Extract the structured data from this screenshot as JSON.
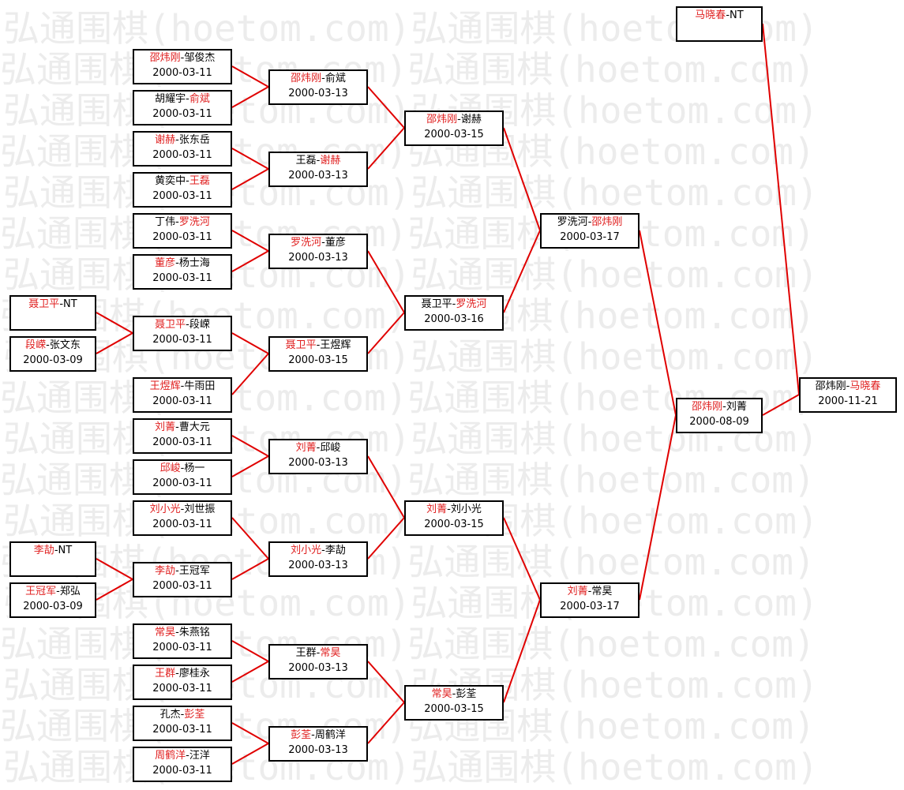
{
  "watermark": "弘通围棋(hoetom.com)弘通围棋(hoetom.com)",
  "colors": {
    "winner": "#e02020",
    "line": "#e00000",
    "border": "#000000",
    "watermark": "#ececec"
  },
  "matches": [
    {
      "a": "马晓春",
      "b": "NT",
      "winner": "a",
      "date": ""
    },
    {
      "a": "邵炜刚",
      "b": "马晓春",
      "winner": "b",
      "date": "2000-11-21"
    },
    {
      "a": "邵炜刚",
      "b": "刘菁",
      "winner": "a",
      "date": "2000-08-09"
    },
    {
      "a": "罗洗河",
      "b": "邵炜刚",
      "winner": "b",
      "date": "2000-03-17"
    },
    {
      "a": "刘菁",
      "b": "常昊",
      "winner": "a",
      "date": "2000-03-17"
    },
    {
      "a": "邵炜刚",
      "b": "谢赫",
      "winner": "a",
      "date": "2000-03-15"
    },
    {
      "a": "聂卫平",
      "b": "罗洗河",
      "winner": "b",
      "date": "2000-03-16"
    },
    {
      "a": "刘菁",
      "b": "刘小光",
      "winner": "a",
      "date": "2000-03-15"
    },
    {
      "a": "常昊",
      "b": "彭荃",
      "winner": "a",
      "date": "2000-03-15"
    },
    {
      "a": "邵炜刚",
      "b": "俞斌",
      "winner": "a",
      "date": "2000-03-13"
    },
    {
      "a": "王磊",
      "b": "谢赫",
      "winner": "b",
      "date": "2000-03-13"
    },
    {
      "a": "罗洗河",
      "b": "董彦",
      "winner": "a",
      "date": "2000-03-13"
    },
    {
      "a": "聂卫平",
      "b": "王煜辉",
      "winner": "a",
      "date": "2000-03-15"
    },
    {
      "a": "刘菁",
      "b": "邱峻",
      "winner": "a",
      "date": "2000-03-13"
    },
    {
      "a": "刘小光",
      "b": "李劼",
      "winner": "a",
      "date": "2000-03-13"
    },
    {
      "a": "王群",
      "b": "常昊",
      "winner": "b",
      "date": "2000-03-13"
    },
    {
      "a": "彭荃",
      "b": "周鹤洋",
      "winner": "a",
      "date": "2000-03-13"
    },
    {
      "a": "邵炜刚",
      "b": "邹俊杰",
      "winner": "a",
      "date": "2000-03-11"
    },
    {
      "a": "胡耀宇",
      "b": "俞斌",
      "winner": "b",
      "date": "2000-03-11"
    },
    {
      "a": "谢赫",
      "b": "张东岳",
      "winner": "a",
      "date": "2000-03-11"
    },
    {
      "a": "黄奕中",
      "b": "王磊",
      "winner": "b",
      "date": "2000-03-11"
    },
    {
      "a": "丁伟",
      "b": "罗洗河",
      "winner": "b",
      "date": "2000-03-11"
    },
    {
      "a": "董彦",
      "b": "杨士海",
      "winner": "a",
      "date": "2000-03-11"
    },
    {
      "a": "聂卫平",
      "b": "段嵘",
      "winner": "a",
      "date": "2000-03-11"
    },
    {
      "a": "王煜辉",
      "b": "牛雨田",
      "winner": "a",
      "date": "2000-03-11"
    },
    {
      "a": "刘菁",
      "b": "曹大元",
      "winner": "a",
      "date": "2000-03-11"
    },
    {
      "a": "邱峻",
      "b": "杨一",
      "winner": "a",
      "date": "2000-03-11"
    },
    {
      "a": "刘小光",
      "b": "刘世振",
      "winner": "a",
      "date": "2000-03-11"
    },
    {
      "a": "李劼",
      "b": "王冠军",
      "winner": "a",
      "date": "2000-03-11"
    },
    {
      "a": "常昊",
      "b": "朱燕铭",
      "winner": "a",
      "date": "2000-03-11"
    },
    {
      "a": "王群",
      "b": "廖桂永",
      "winner": "a",
      "date": "2000-03-11"
    },
    {
      "a": "孔杰",
      "b": "彭荃",
      "winner": "b",
      "date": "2000-03-11"
    },
    {
      "a": "周鹤洋",
      "b": "汪洋",
      "winner": "a",
      "date": "2000-03-11"
    },
    {
      "a": "聂卫平",
      "b": "NT",
      "winner": "a",
      "date": ""
    },
    {
      "a": "段嵘",
      "b": "张文东",
      "winner": "a",
      "date": "2000-03-09"
    },
    {
      "a": "李劼",
      "b": "NT",
      "winner": "a",
      "date": ""
    },
    {
      "a": "王冠军",
      "b": "郑弘",
      "winner": "a",
      "date": "2000-03-09"
    }
  ]
}
